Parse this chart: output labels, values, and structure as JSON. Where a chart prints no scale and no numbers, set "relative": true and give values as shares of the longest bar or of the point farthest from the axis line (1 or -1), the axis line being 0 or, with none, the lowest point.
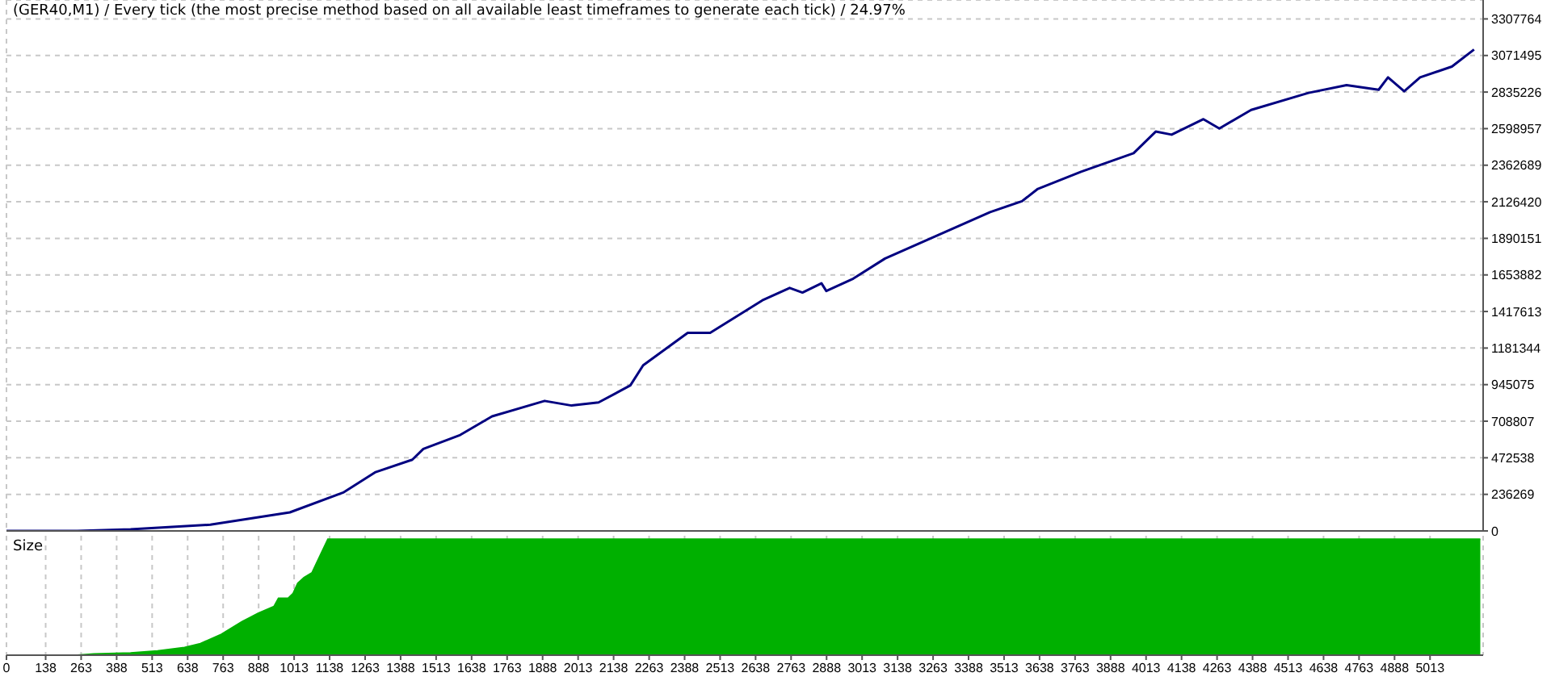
{
  "chart_data": [
    {
      "type": "line",
      "title": "(GER40,M1) / Every tick (the most precise method based on all available least timeframes to generate each tick) / 24.97%",
      "x": [
        0,
        250,
        437,
        718,
        998,
        1188,
        1300,
        1429,
        1468,
        1598,
        1710,
        1895,
        1990,
        2085,
        2197,
        2242,
        2399,
        2478,
        2662,
        2758,
        2803,
        2870,
        2887,
        2982,
        3094,
        3279,
        3464,
        3576,
        3632,
        3784,
        3969,
        4047,
        4103,
        4215,
        4271,
        4383,
        4585,
        4719,
        4832,
        4865,
        4922,
        4978,
        5090,
        5168
      ],
      "series": [
        {
          "color": "#000080",
          "values": [
            0,
            0,
            10000,
            40000,
            120000,
            250000,
            380000,
            460000,
            530000,
            620000,
            740000,
            840000,
            810000,
            830000,
            940000,
            1070000,
            1280000,
            1280000,
            1490000,
            1570000,
            1540000,
            1600000,
            1550000,
            1630000,
            1760000,
            1910000,
            2060000,
            2130000,
            2210000,
            2320000,
            2440000,
            2580000,
            2560000,
            2660000,
            2600000,
            2720000,
            2830000,
            2880000,
            2850000,
            2930000,
            2840000,
            2930000,
            3000000,
            3110000
          ]
        }
      ],
      "xlim": [
        0,
        5200
      ],
      "xticks": [
        0,
        138,
        263,
        388,
        513,
        638,
        763,
        888,
        1013,
        1138,
        1263,
        1388,
        1513,
        1638,
        1763,
        1888,
        2013,
        2138,
        2263,
        2388,
        2513,
        2638,
        2763,
        2888,
        3013,
        3138,
        3263,
        3388,
        3513,
        3638,
        3763,
        3888,
        4013,
        4138,
        4263,
        4388,
        4513,
        4638,
        4763,
        4888,
        5013
      ],
      "ylim": [
        0,
        3430000
      ],
      "yticks": [
        0,
        236269,
        472538,
        708807,
        945075,
        1181344,
        1417613,
        1653882,
        1890151,
        2126420,
        2362689,
        2598957,
        2835226,
        3071495,
        3307764
      ],
      "grid": true,
      "tick_labels": "y",
      "marker": "none",
      "line_style": "solid"
    },
    {
      "type": "area",
      "title": "Size",
      "relative": true,
      "x": [
        0,
        250,
        308,
        437,
        532,
        627,
        683,
        757,
        830,
        886,
        942,
        958,
        992,
        1009,
        1026,
        1048,
        1076,
        1093,
        1132,
        5190
      ],
      "series": [
        {
          "color": "#00b000",
          "values": [
            0,
            0,
            0.01,
            0.02,
            0.036,
            0.067,
            0.1,
            0.18,
            0.29,
            0.36,
            0.42,
            0.49,
            0.49,
            0.53,
            0.62,
            0.67,
            0.71,
            0.8,
            1,
            1
          ]
        }
      ],
      "xlim": [
        0,
        5200
      ],
      "xticks": [
        0,
        138,
        263,
        388,
        513,
        638,
        763,
        888,
        1013,
        1138,
        1263,
        1388,
        1513,
        1638,
        1763,
        1888,
        2013,
        2138,
        2263,
        2388,
        2513,
        2638,
        2763,
        2888,
        3013,
        3138,
        3263,
        3388,
        3513,
        3638,
        3763,
        3888,
        4013,
        4138,
        4263,
        4388,
        4513,
        4638,
        4763,
        4888,
        5013
      ],
      "grid": "x",
      "tick_labels": "x"
    }
  ]
}
